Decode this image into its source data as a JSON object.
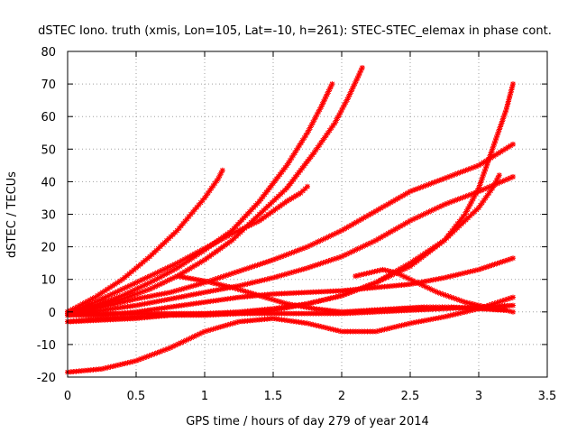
{
  "chart_data": {
    "type": "line",
    "title": "dSTEC Iono. truth (xmis, Lon=105, Lat=-10, h=261): STEC-STEC_elemax in phase cont.",
    "xlabel": "GPS time / hours of day 279 of year 2014",
    "ylabel": "dSTEC  / TECUs",
    "xlim": [
      0,
      3.5
    ],
    "ylim": [
      -20,
      80
    ],
    "xticks": [
      0,
      0.5,
      1,
      1.5,
      2,
      2.5,
      3,
      3.5
    ],
    "yticks": [
      -20,
      -10,
      0,
      10,
      20,
      30,
      40,
      50,
      60,
      70,
      80
    ],
    "grid": true,
    "legend": "none",
    "marker": "plus-cross",
    "color": "#ff0000",
    "series": [
      {
        "x": [
          0,
          0.2,
          0.4,
          0.6,
          0.8,
          0.9,
          1.0,
          1.1,
          1.13
        ],
        "y": [
          0,
          4.5,
          10,
          17,
          25,
          30,
          35,
          41,
          43.5
        ]
      },
      {
        "x": [
          0,
          0.2,
          0.4,
          0.6,
          0.8,
          1.0,
          1.2,
          1.4,
          1.6,
          1.75,
          1.85,
          1.93
        ],
        "y": [
          0,
          2,
          5,
          9,
          13.5,
          19,
          25,
          34,
          45,
          55,
          63,
          70
        ]
      },
      {
        "x": [
          0,
          0.2,
          0.4,
          0.6,
          0.8,
          1.0,
          1.2,
          1.4,
          1.6,
          1.8,
          1.95,
          2.05,
          2.15
        ],
        "y": [
          -1,
          1.5,
          4,
          7,
          11,
          16,
          22,
          30,
          38,
          49,
          58,
          66,
          75
        ]
      },
      {
        "x": [
          0,
          0.2,
          0.4,
          0.6,
          0.8,
          1.0,
          1.2,
          1.4,
          1.5,
          1.6,
          1.7,
          1.75
        ],
        "y": [
          -0.5,
          3,
          7,
          11,
          15,
          19.5,
          24,
          28,
          31,
          34,
          36.5,
          38.5
        ]
      },
      {
        "x": [
          0,
          0.25,
          0.5,
          0.75,
          1.0,
          1.25,
          1.5,
          1.75,
          2.0,
          2.25,
          2.5,
          2.75,
          3.0,
          3.25
        ],
        "y": [
          0,
          1.5,
          4,
          6,
          9,
          12.5,
          16,
          20,
          25,
          31,
          37,
          41,
          45,
          51.5
        ]
      },
      {
        "x": [
          0,
          0.25,
          0.5,
          0.75,
          1.0,
          1.25,
          1.5,
          1.75,
          2.0,
          2.25,
          2.5,
          2.75,
          3.0,
          3.25
        ],
        "y": [
          -0.5,
          0.5,
          2,
          4,
          6,
          8,
          10.5,
          13.5,
          17,
          22,
          28,
          33,
          37,
          41.5
        ]
      },
      {
        "x": [
          0,
          0.25,
          0.5,
          0.75,
          1.0,
          1.25,
          1.5,
          1.75,
          2.0,
          2.25,
          2.5,
          2.75,
          2.9,
          3.0,
          3.1,
          3.2,
          3.25
        ],
        "y": [
          -3,
          -2.5,
          -2,
          -1,
          -0.5,
          0,
          1,
          2.5,
          5,
          9,
          14,
          22,
          30,
          38,
          50,
          62,
          70
        ]
      },
      {
        "x": [
          0,
          0.25,
          0.5,
          0.75,
          1.0,
          1.25,
          1.5,
          1.75,
          2.0,
          2.25,
          2.5,
          2.75,
          3.0,
          3.1,
          3.15
        ],
        "y": [
          -3,
          -2,
          -1.5,
          -1,
          -1,
          -0.5,
          0.5,
          2.5,
          5,
          9,
          15,
          22,
          32,
          38,
          42
        ]
      },
      {
        "x": [
          0,
          0.25,
          0.5,
          0.75,
          1.0,
          1.25,
          1.5,
          1.75,
          2.0,
          2.25,
          2.5,
          2.75,
          3.0,
          3.25
        ],
        "y": [
          0,
          -0.5,
          -0.5,
          -0.5,
          -0.5,
          -0.5,
          -0.5,
          -0.5,
          -0.5,
          0,
          0.5,
          1,
          1.5,
          2
        ]
      },
      {
        "x": [
          0,
          0.25,
          0.5,
          0.75,
          1.0,
          1.25,
          1.5,
          1.75,
          2.0,
          2.25,
          2.5,
          2.75,
          3.0,
          3.25
        ],
        "y": [
          -1,
          -1,
          0,
          1.5,
          3,
          4.5,
          5.5,
          6,
          6.5,
          7.5,
          8.5,
          10.5,
          13,
          16.5
        ]
      },
      {
        "x": [
          0,
          0.25,
          0.5,
          0.75,
          1.0,
          1.25,
          1.5,
          1.75,
          2.0,
          2.25,
          2.5,
          2.75,
          3.0,
          3.25
        ],
        "y": [
          -18.5,
          -17.5,
          -15,
          -11,
          -6,
          -3,
          -2,
          -3.5,
          -6,
          -6,
          -3.5,
          -1.5,
          1,
          4.5
        ]
      },
      {
        "x": [
          0.8,
          1.0,
          1.2,
          1.4,
          1.6,
          1.8,
          2.0,
          2.2,
          2.4,
          2.6,
          2.8,
          3.0,
          3.2
        ],
        "y": [
          11,
          9.5,
          7.5,
          5,
          2.5,
          1,
          0,
          0.5,
          1,
          1.5,
          1.5,
          1,
          0.5
        ]
      },
      {
        "x": [
          2.1,
          2.2,
          2.3,
          2.4,
          2.5,
          2.6,
          2.7,
          2.8,
          2.9,
          3.0,
          3.1,
          3.2,
          3.25
        ],
        "y": [
          11,
          12,
          13,
          12,
          10,
          8,
          6,
          4.5,
          3,
          2,
          1,
          0.5,
          0
        ]
      }
    ]
  }
}
